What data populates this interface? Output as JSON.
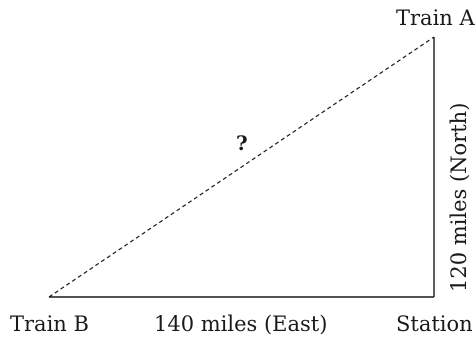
{
  "labels": {
    "train_a": "Train A",
    "train_b": "Train B",
    "station": "Station",
    "east_leg": "140 miles (East)",
    "north_leg": "120 miles (North)",
    "unknown": "?"
  },
  "colors": {
    "line": "#1a1a1a",
    "background": "#ffffff"
  }
}
